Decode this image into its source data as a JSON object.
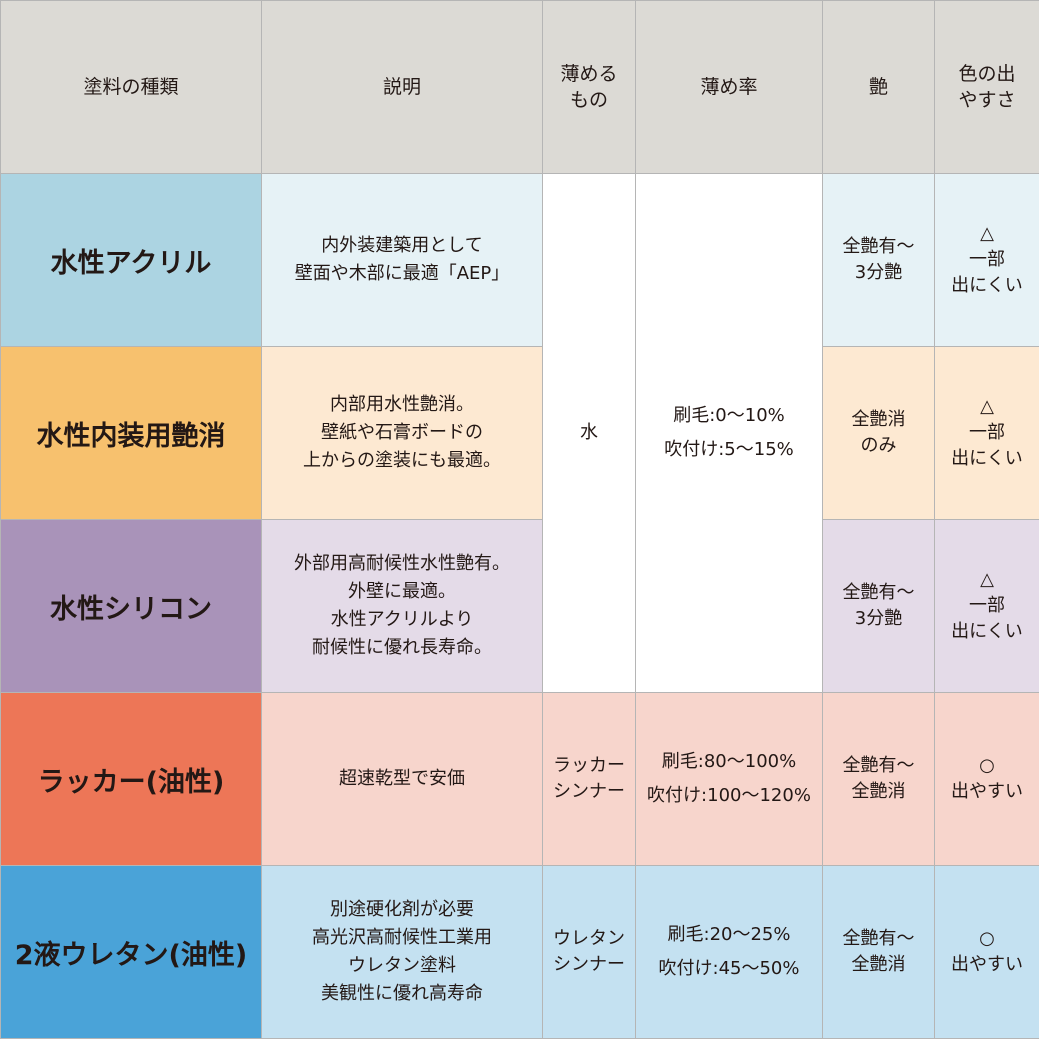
{
  "headers": [
    "塗料の種類",
    "説明",
    "薄める\nもの",
    "薄め率",
    "艶",
    "色の出\nやすさ"
  ],
  "colors": {
    "header": "#dcdad5",
    "rows": [
      {
        "main": "#acd4e2",
        "light": "#e6f2f6"
      },
      {
        "main": "#f7c16e",
        "light": "#fde9d2"
      },
      {
        "main": "#a993b9",
        "light": "#e4dbe8"
      },
      {
        "main": "#ed7657",
        "light": "#f7d5cc"
      },
      {
        "main": "#4aa3d8",
        "light": "#c4e1f1"
      }
    ]
  },
  "shared_water": {
    "thinner": "水",
    "ratio": "刷毛:0〜10%\n吹付け:5〜15%"
  },
  "rows": [
    {
      "name": "水性アクリル",
      "description": "内外装建築用として\n壁面や木部に最適「AEP」",
      "gloss": "全艶有〜\n3分艶",
      "color_ease": "△\n一部\n出にくい"
    },
    {
      "name": "水性内装用艶消",
      "description": "内部用水性艶消。\n壁紙や石膏ボードの\n上からの塗装にも最適。",
      "gloss": "全艶消\nのみ",
      "color_ease": "△\n一部\n出にくい"
    },
    {
      "name": "水性シリコン",
      "description": "外部用高耐候性水性艶有。\n外壁に最適。\n水性アクリルより\n耐候性に優れ長寿命。",
      "gloss": "全艶有〜\n3分艶",
      "color_ease": "△\n一部\n出にくい"
    },
    {
      "name": "ラッカー(油性)",
      "description": "超速乾型で安価",
      "thinner": "ラッカー\nシンナー",
      "ratio": "刷毛:80〜100%\n吹付け:100〜120%",
      "gloss": "全艶有〜\n全艶消",
      "color_ease": "○\n出やすい"
    },
    {
      "name": "2液ウレタン(油性)",
      "description": "別途硬化剤が必要\n高光沢高耐候性工業用\nウレタン塗料\n美観性に優れ高寿命",
      "thinner": "ウレタン\nシンナー",
      "ratio": "刷毛:20〜25%\n吹付け:45〜50%",
      "gloss": "全艶有〜\n全艶消",
      "color_ease": "○\n出やすい"
    }
  ]
}
